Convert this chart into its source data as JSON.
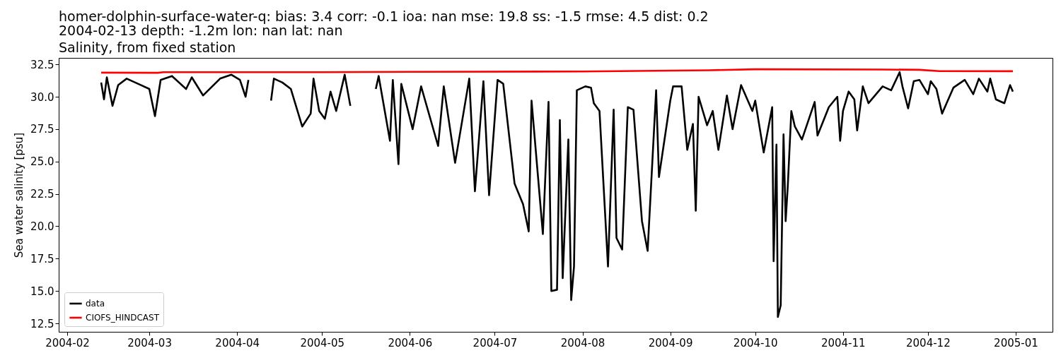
{
  "chart_data": {
    "type": "line",
    "title": "homer-dolphin-surface-water-q: bias: 3.4  corr: -0.1  ioa: nan  mse: 19.8  ss: -1.5  rmse: 4.5  dist: 0.2",
    "subtitle": "2004-02-13 depth: -1.2m lon: nan lat: nan\nSalinity, from fixed station",
    "ylabel": "Sea water salinity [psu]",
    "xlim": [
      "2004-01-29",
      "2005-01-14"
    ],
    "xticks": [
      "2004-02",
      "2004-03",
      "2004-04",
      "2004-05",
      "2004-06",
      "2004-07",
      "2004-08",
      "2004-09",
      "2004-10",
      "2004-11",
      "2004-12",
      "2005-01"
    ],
    "ylim": [
      11.85,
      33.0
    ],
    "yticks": [
      12.5,
      {
        "value": 15,
        "label": "15.0"
      },
      17.5,
      {
        "value": 20,
        "label": "20.0"
      },
      22.5,
      {
        "value": 25,
        "label": "25.0"
      },
      27.5,
      {
        "value": 30,
        "label": "30.0"
      },
      32.5
    ],
    "grid": false,
    "legend": "bottom left",
    "series": [
      {
        "name": "data",
        "color": "#000000",
        "x": [
          "2004-02-13",
          "2004-02-14",
          "2004-02-15",
          "2004-02-17",
          "2004-02-19",
          "2004-02-22",
          "2004-02-26",
          "2004-03-01",
          "2004-03-03",
          "2004-03-05",
          "2004-03-09",
          "2004-03-14",
          "2004-03-16",
          "2004-03-20",
          "2004-03-26",
          "2004-03-30",
          "2004-04-02",
          "2004-04-04",
          "2004-04-05",
          "2004-04-08",
          "2004-04-13",
          "2004-04-14",
          "2004-04-17",
          "2004-04-20",
          "2004-04-24",
          "2004-04-27",
          "2004-04-28",
          "2004-04-30",
          "2004-05-02",
          "2004-05-04",
          "2004-05-06",
          "2004-05-09",
          "2004-05-11",
          "2004-05-15",
          "2004-05-20",
          "2004-05-21",
          "2004-05-25",
          "2004-05-26",
          "2004-05-28",
          "2004-05-29",
          "2004-06-02",
          "2004-06-05",
          "2004-06-11",
          "2004-06-13",
          "2004-06-17",
          "2004-06-22",
          "2004-06-24",
          "2004-06-27",
          "2004-06-29",
          "2004-07-02",
          "2004-07-04",
          "2004-07-08",
          "2004-07-11",
          "2004-07-13",
          "2004-07-14",
          "2004-07-18",
          "2004-07-20",
          "2004-07-21",
          "2004-07-23",
          "2004-07-24",
          "2004-07-25",
          "2004-07-27",
          "2004-07-28",
          "2004-07-29",
          "2004-07-30",
          "2004-08-02",
          "2004-08-04",
          "2004-08-05",
          "2004-08-07",
          "2004-08-10",
          "2004-08-12",
          "2004-08-13",
          "2004-08-15",
          "2004-08-17",
          "2004-08-19",
          "2004-08-22",
          "2004-08-24",
          "2004-08-27",
          "2004-08-28",
          "2004-09-01",
          "2004-09-02",
          "2004-09-05",
          "2004-09-07",
          "2004-09-09",
          "2004-09-10",
          "2004-09-11",
          "2004-09-14",
          "2004-09-16",
          "2004-09-18",
          "2004-09-21",
          "2004-09-23",
          "2004-09-26",
          "2004-09-30",
          "2004-10-01",
          "2004-10-04",
          "2004-10-07",
          "2004-10-07T12:00",
          "2004-10-08T12:00",
          "2004-10-09",
          "2004-10-10",
          "2004-10-11",
          "2004-10-11T18:00",
          "2004-10-12T12:00",
          "2004-10-13T18:00",
          "2004-10-15",
          "2004-10-17T12:00",
          "2004-10-22",
          "2004-10-23",
          "2004-10-27",
          "2004-10-30",
          "2004-10-31",
          "2004-11-01",
          "2004-11-03",
          "2004-11-05",
          "2004-11-06",
          "2004-11-08",
          "2004-11-10",
          "2004-11-15",
          "2004-11-18",
          "2004-11-21",
          "2004-11-22",
          "2004-11-24",
          "2004-11-26",
          "2004-11-28",
          "2004-12-01",
          "2004-12-02",
          "2004-12-04",
          "2004-12-06",
          "2004-12-08",
          "2004-12-10",
          "2004-12-14",
          "2004-12-17",
          "2004-12-19",
          "2004-12-22",
          "2004-12-23",
          "2004-12-25",
          "2004-12-28",
          "2004-12-30",
          "2004-12-31"
        ],
        "values": [
          31.1,
          29.8,
          31.5,
          29.3,
          30.9,
          31.4,
          31.0,
          30.6,
          28.5,
          31.3,
          31.6,
          30.6,
          31.5,
          30.1,
          31.4,
          31.7,
          31.3,
          30.0,
          31.3,
          null,
          29.7,
          31.4,
          31.1,
          30.6,
          27.7,
          28.7,
          31.4,
          28.9,
          28.3,
          30.4,
          28.9,
          31.7,
          29.3,
          null,
          30.6,
          31.6,
          26.6,
          31.3,
          24.8,
          31.0,
          27.5,
          30.8,
          26.2,
          30.8,
          24.9,
          31.4,
          22.7,
          31.2,
          22.4,
          31.3,
          31.0,
          23.3,
          21.7,
          19.6,
          29.7,
          19.4,
          29.6,
          15.0,
          15.1,
          28.2,
          16.0,
          26.7,
          14.3,
          16.9,
          30.5,
          30.8,
          30.7,
          29.5,
          28.9,
          16.9,
          29.0,
          19.1,
          18.2,
          29.2,
          29.0,
          20.4,
          18.1,
          30.5,
          23.8,
          29.7,
          30.8,
          30.8,
          25.9,
          27.9,
          21.2,
          30.0,
          27.8,
          28.9,
          25.9,
          30.1,
          27.5,
          30.9,
          28.9,
          29.7,
          25.7,
          29.2,
          17.3,
          26.3,
          13.0,
          13.9,
          27.1,
          20.4,
          23.1,
          28.9,
          27.7,
          26.7,
          29.6,
          27.0,
          29.2,
          30.0,
          26.6,
          28.9,
          30.4,
          29.8,
          27.4,
          30.8,
          29.5,
          30.8,
          30.5,
          31.9,
          30.8,
          29.1,
          31.2,
          31.3,
          30.2,
          31.2,
          30.6,
          28.7,
          29.7,
          30.7,
          31.3,
          30.2,
          31.4,
          30.4,
          31.4,
          29.8,
          29.5,
          30.9,
          30.4
        ]
      },
      {
        "name": "CIOFS_HINDCAST",
        "color": "#ff0000",
        "x": [
          "2004-02-13",
          "2004-03-04",
          "2004-03-06",
          "2004-05-01",
          "2004-06-01",
          "2004-08-01",
          "2004-09-15",
          "2004-10-01",
          "2004-11-15",
          "2004-11-28",
          "2004-12-05",
          "2004-12-31"
        ],
        "values": [
          31.86,
          31.85,
          31.9,
          31.9,
          31.92,
          31.95,
          32.05,
          32.12,
          32.1,
          32.08,
          31.98,
          31.97
        ]
      }
    ]
  }
}
